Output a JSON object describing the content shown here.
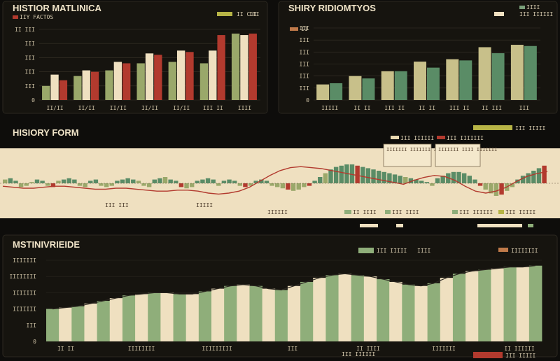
{
  "colors": {
    "background": "#0e0d0b",
    "panel": "#16140f",
    "cream": "#efe0c0",
    "olive": "#9aa86a",
    "khaki": "#c8c08a",
    "red": "#b23a2e",
    "green": "#5a8c66",
    "sage": "#8fae7a",
    "mustard": "#b7b446"
  },
  "panels": {
    "top_left": {
      "title": "HISTIOR MATLINICA",
      "subtitle": "IIY FACTOS",
      "legend": [
        "II CUI",
        "III"
      ]
    },
    "top_right": {
      "title": "SHIRY RIDIOMTYOS",
      "legend_left": "II",
      "legend": [
        "IIII",
        "III IIIIII"
      ]
    },
    "middle": {
      "title": "HISIORY FORM",
      "legend": [
        "III IIIII",
        "III IIIIII",
        "III IIIIIII"
      ],
      "annotations": [
        "IIIIIII IIIIIII IIII",
        "IIIIIII IIII IIIIIII"
      ],
      "bottom_labels": [
        "II IIII",
        "III IIII",
        "III IIIIII",
        "III IIIII"
      ],
      "axis_labels": [
        "III III",
        "IIIII",
        "IIIIII"
      ]
    },
    "bottom": {
      "title": "MSTINIVRIEIDE",
      "legend": [
        "III IIIII",
        "IIII"
      ],
      "legend_right": "IIIIIIII",
      "footer": "III IIIII",
      "caption": "III IIIIII"
    }
  },
  "chart_data": [
    {
      "type": "bar",
      "panel": "top_left",
      "categories": [
        "II/II",
        "II/II",
        "II/II",
        "II/II",
        "II/II",
        "III II",
        "IIII"
      ],
      "y_ticks": [
        "II III",
        "III",
        "III",
        "III",
        "III",
        "0"
      ],
      "ylim": [
        0,
        5
      ],
      "series": [
        {
          "color": "olive",
          "values": [
            1.0,
            1.7,
            2.1,
            2.6,
            2.7,
            2.6,
            4.7
          ]
        },
        {
          "color": "cream",
          "values": [
            1.8,
            2.1,
            2.7,
            3.3,
            3.5,
            3.5,
            4.6
          ]
        },
        {
          "color": "red",
          "values": [
            1.4,
            2.0,
            2.6,
            3.2,
            3.4,
            4.6,
            4.7
          ]
        }
      ]
    },
    {
      "type": "bar",
      "panel": "top_right",
      "categories": [
        "IIIII",
        "II II",
        "III II",
        "II II",
        "III II",
        "II III",
        "III"
      ],
      "y_ticks": [
        "III",
        "III",
        "III",
        "III",
        "III",
        "III",
        "0"
      ],
      "ylim": [
        0,
        6
      ],
      "series": [
        {
          "color": "khaki",
          "values": [
            1.3,
            2.0,
            2.4,
            3.2,
            3.4,
            4.4,
            4.6
          ]
        },
        {
          "color": "green",
          "values": [
            1.4,
            1.8,
            2.4,
            2.7,
            3.3,
            3.9,
            4.5
          ]
        }
      ]
    },
    {
      "type": "bar",
      "panel": "middle",
      "note": "diverging volume bars around a baseline with an overlaid trend line",
      "values": [
        0.3,
        0.4,
        0.2,
        -0.3,
        -0.2,
        0.1,
        0.3,
        0.2,
        -0.2,
        -0.3,
        0.2,
        0.3,
        0.4,
        0.3,
        -0.2,
        -0.3,
        0.2,
        0.3,
        -0.2,
        -0.3,
        -0.2,
        0.2,
        0.3,
        0.4,
        0.3,
        0.2,
        -0.2,
        -0.3,
        0.3,
        0.4,
        0.5,
        0.3,
        0.2,
        -0.3,
        -0.4,
        -0.3,
        0.2,
        0.3,
        0.4,
        0.3,
        -0.2,
        0.2,
        0.3,
        0.2,
        -0.2,
        -0.3,
        -0.2,
        0.2,
        0.3,
        0.2,
        -0.2,
        -0.3,
        -0.4,
        -0.5,
        -0.6,
        -0.5,
        -0.3,
        -0.2,
        0.2,
        0.5,
        0.8,
        1.1,
        1.3,
        1.4,
        1.5,
        1.5,
        1.4,
        1.3,
        1.2,
        1.1,
        1.0,
        0.9,
        0.8,
        0.7,
        0.6,
        0.5,
        0.4,
        0.3,
        0.2,
        0.1,
        -0.2,
        0.4,
        0.6,
        0.8,
        0.9,
        0.9,
        0.8,
        0.6,
        0.3,
        -0.2,
        -0.5,
        -0.8,
        -1.0,
        -0.9,
        -0.6,
        -0.3,
        0.3,
        0.6,
        0.8,
        1.0,
        1.2,
        1.4
      ],
      "line": [
        -0.3,
        -0.4,
        -0.5,
        -0.5,
        -0.4,
        -0.3,
        -0.3,
        -0.4,
        -0.5,
        -0.6,
        -0.6,
        -0.5,
        -0.5,
        -0.6,
        -0.7,
        -0.8,
        -0.8,
        -0.7,
        -0.7,
        -0.8,
        -1.0,
        -1.1,
        -1.0,
        -0.8,
        -0.4,
        0.2,
        0.8,
        1.3,
        1.6,
        1.7,
        1.6,
        1.5,
        1.3,
        1.1,
        0.9,
        0.7,
        0.5,
        0.3,
        0.1,
        -0.1,
        0.3,
        0.6,
        0.8,
        0.7,
        0.3,
        -0.3,
        -0.8,
        -1.0,
        -0.8,
        -0.4,
        0.2,
        0.7,
        1.0,
        1.2
      ]
    },
    {
      "type": "area",
      "panel": "bottom",
      "y_ticks": [
        "IIIIIII",
        "IIIIIIII",
        "IIIIIII",
        "IIIIIII",
        "III",
        "0"
      ],
      "x_ticks": [
        "II II",
        "IIIIIIII",
        "IIIIIIIII",
        "III",
        "II IIII",
        "IIIIIII",
        "II IIIIII"
      ],
      "ylim": [
        0,
        6
      ],
      "values": [
        2.4,
        2.5,
        2.6,
        2.8,
        3.0,
        3.2,
        3.4,
        3.5,
        3.6,
        3.6,
        3.5,
        3.5,
        3.7,
        3.9,
        4.1,
        4.2,
        4.1,
        3.9,
        3.8,
        4.1,
        4.4,
        4.7,
        4.9,
        5.0,
        4.9,
        4.8,
        4.6,
        4.4,
        4.2,
        4.1,
        4.3,
        4.7,
        5.0,
        5.2,
        5.3,
        5.4,
        5.5,
        5.5,
        5.6
      ]
    }
  ]
}
